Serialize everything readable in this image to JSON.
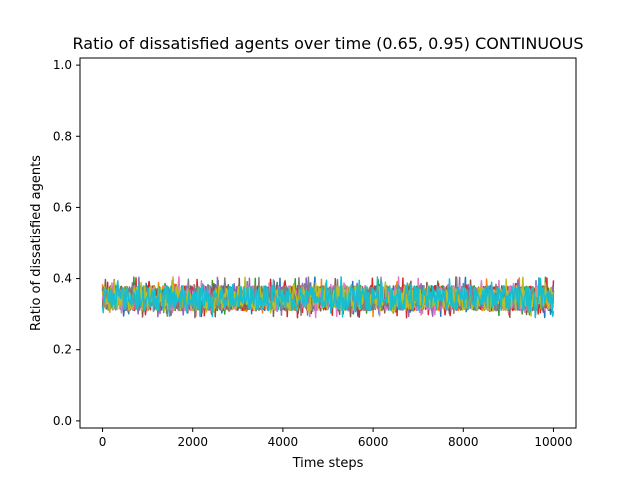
{
  "chart_data": {
    "type": "line",
    "title": "Ratio of dissatisfied agents over time (0.65, 0.95) CONTINUOUS",
    "xlabel": "Time steps",
    "ylabel": "Ratio of dissatisfied agents",
    "xlim": [
      -500,
      10500
    ],
    "ylim": [
      -0.02,
      1.02
    ],
    "x_ticks": [
      0,
      2000,
      4000,
      6000,
      8000,
      10000
    ],
    "y_ticks": [
      0.0,
      0.2,
      0.4,
      0.6,
      0.8,
      1.0
    ],
    "x_tick_labels": [
      "0",
      "2000",
      "4000",
      "6000",
      "8000",
      "10000"
    ],
    "y_tick_labels": [
      "0.0",
      "0.2",
      "0.4",
      "0.6",
      "0.8",
      "1.0"
    ],
    "grid": false,
    "x_range": [
      0,
      10000
    ],
    "series_colors": [
      "#1f77b4",
      "#ff7f0e",
      "#2ca02c",
      "#d62728",
      "#9467bd",
      "#8c564b",
      "#e377c2",
      "#7f7f7f",
      "#bcbd22",
      "#17becf"
    ],
    "series_summary": {
      "mean": 0.35,
      "typical_band": [
        0.31,
        0.38
      ],
      "max": 0.405,
      "min": 0.29
    }
  }
}
